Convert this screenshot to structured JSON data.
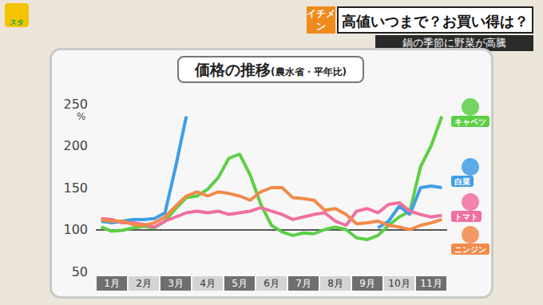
{
  "screen": {
    "logo": "スタ",
    "badge": "イチメン",
    "headline": "高値いつまで？お買い得は？",
    "subheadline": "鍋の季節に野菜が高騰"
  },
  "chart_data": {
    "type": "line",
    "title": "価格の推移",
    "subtitle": "(農水省・平年比)",
    "y_label": "%",
    "categories": [
      null,
      "1月",
      null,
      null,
      "2月",
      null,
      null,
      "3月",
      null,
      null,
      "4月",
      null,
      null,
      "5月",
      null,
      null,
      "6月",
      null,
      null,
      "7月",
      null,
      null,
      "8月",
      null,
      null,
      "9月",
      null,
      null,
      "10月",
      null,
      null,
      "11月",
      null
    ],
    "series": [
      {
        "name": "キャベツ",
        "color": "#5ccf45",
        "values": [
          103,
          98,
          99,
          102,
          104,
          102,
          110,
          125,
          138,
          140,
          148,
          162,
          185,
          190,
          165,
          130,
          105,
          97,
          93,
          96,
          95,
          100,
          103,
          100,
          90,
          88,
          93,
          105,
          115,
          122,
          175,
          200,
          235
        ]
      },
      {
        "name": "白菜",
        "color": "#3f9de6",
        "values": [
          110,
          108,
          110,
          112,
          112,
          113,
          120,
          175,
          235,
          null,
          null,
          null,
          null,
          null,
          null,
          null,
          null,
          null,
          null,
          null,
          null,
          null,
          null,
          null,
          null,
          null,
          102,
          110,
          128,
          118,
          150,
          152,
          150
        ]
      },
      {
        "name": "トマト",
        "color": "#f06fa0",
        "values": [
          113,
          112,
          108,
          108,
          106,
          103,
          110,
          115,
          120,
          122,
          120,
          122,
          118,
          120,
          122,
          126,
          122,
          118,
          112,
          115,
          118,
          120,
          110,
          105,
          122,
          125,
          120,
          130,
          132,
          122,
          118,
          115,
          117
        ]
      },
      {
        "name": "ニンジン",
        "color": "#f28a4a",
        "values": [
          112,
          110,
          110,
          106,
          105,
          108,
          115,
          128,
          140,
          145,
          140,
          145,
          143,
          140,
          135,
          145,
          150,
          150,
          138,
          137,
          135,
          123,
          125,
          118,
          107,
          108,
          110,
          105,
          103,
          100,
          105,
          108,
          112
        ]
      }
    ],
    "reference_line": 100,
    "ylim": [
      50,
      250
    ],
    "yticks": [
      50,
      100,
      150,
      200,
      250
    ],
    "grid": false
  }
}
